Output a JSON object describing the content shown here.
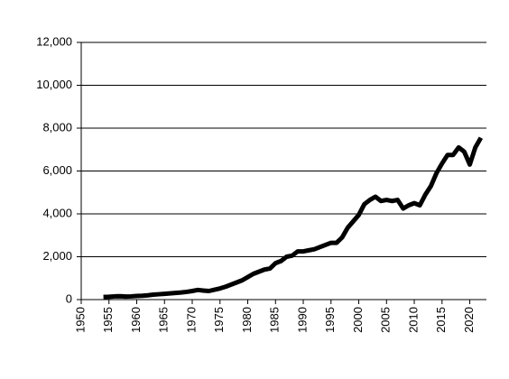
{
  "chart_data": {
    "type": "line",
    "x": [
      1954,
      1955,
      1956,
      1957,
      1958,
      1959,
      1960,
      1961,
      1962,
      1963,
      1964,
      1965,
      1966,
      1967,
      1968,
      1969,
      1970,
      1971,
      1972,
      1973,
      1974,
      1975,
      1976,
      1977,
      1978,
      1979,
      1980,
      1981,
      1982,
      1983,
      1984,
      1985,
      1986,
      1987,
      1988,
      1989,
      1990,
      1991,
      1992,
      1993,
      1994,
      1995,
      1996,
      1997,
      1998,
      1999,
      2000,
      2001,
      2002,
      2003,
      2004,
      2005,
      2006,
      2007,
      2008,
      2009,
      2010,
      2011,
      2012,
      2013,
      2014,
      2015,
      2016,
      2017,
      2018,
      2019,
      2020,
      2021,
      2022
    ],
    "series": [
      {
        "color": "#000000",
        "values": [
          120,
          130,
          150,
          160,
          140,
          150,
          170,
          180,
          200,
          230,
          250,
          270,
          290,
          310,
          330,
          360,
          400,
          450,
          420,
          400,
          460,
          520,
          600,
          700,
          800,
          900,
          1050,
          1200,
          1300,
          1400,
          1450,
          1700,
          1800,
          2000,
          2050,
          2250,
          2250,
          2300,
          2350,
          2450,
          2550,
          2650,
          2650,
          2900,
          3350,
          3650,
          3950,
          4450,
          4650,
          4800,
          4600,
          4650,
          4600,
          4650,
          4250,
          4400,
          4500,
          4400,
          4900,
          5300,
          5900,
          6350,
          6750,
          6750,
          7100,
          6900,
          6300,
          7100,
          7550
        ]
      }
    ],
    "xlim": [
      1950,
      2023
    ],
    "xticks": [
      1950,
      1955,
      1960,
      1965,
      1970,
      1975,
      1980,
      1985,
      1990,
      1995,
      2000,
      2005,
      2010,
      2015,
      2020
    ],
    "ylim": [
      0,
      12000
    ],
    "yticks": [
      0,
      {
        "value": 2000,
        "label": "2,000"
      },
      {
        "value": 4000,
        "label": "4,000"
      },
      {
        "value": 6000,
        "label": "6,000"
      },
      {
        "value": 8000,
        "label": "8,000"
      },
      {
        "value": 10000,
        "label": "10,000"
      },
      {
        "value": 12000,
        "label": "12,000"
      }
    ],
    "grid": true
  }
}
